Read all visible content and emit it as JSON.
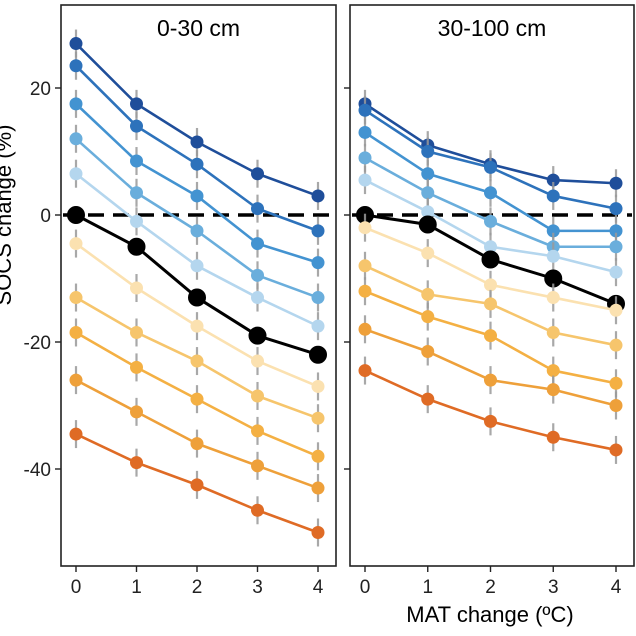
{
  "figure": {
    "ylabel": "SOCS change (%)",
    "xlabel": "MAT change (ºC)"
  },
  "chart_data": [
    {
      "type": "line",
      "title": "0-30 cm",
      "xlabel": "MAT change (ºC)",
      "ylabel": "SOCS change (%)",
      "x": [
        0,
        1,
        2,
        3,
        4
      ],
      "xticks": [
        "0",
        "1",
        "2",
        "3",
        "4"
      ],
      "yticks": [
        20,
        0,
        -20,
        -40
      ],
      "xlim": [
        -0.25,
        4.25
      ],
      "ylim": [
        -53,
        30
      ],
      "reference_line": 0,
      "series": [
        {
          "name": "s1",
          "color": "#1f4e9a",
          "values": [
            27,
            17.5,
            11.5,
            6.5,
            3
          ]
        },
        {
          "name": "s2",
          "color": "#2d72bb",
          "values": [
            23.5,
            14,
            8,
            1,
            -2.5
          ]
        },
        {
          "name": "s3",
          "color": "#4393d1",
          "values": [
            17.5,
            8.5,
            3,
            -4.5,
            -7.5
          ]
        },
        {
          "name": "s4",
          "color": "#6aaedc",
          "values": [
            12,
            3.5,
            -2.5,
            -9.5,
            -13
          ]
        },
        {
          "name": "s5",
          "color": "#b4d6ee",
          "values": [
            6.5,
            -1,
            -8,
            -13,
            -17.5
          ]
        },
        {
          "name": "mean",
          "color": "#000000",
          "values": [
            0,
            -5,
            -13,
            -19,
            -22
          ]
        },
        {
          "name": "s6",
          "color": "#fbe1b0",
          "values": [
            -4.5,
            -11.5,
            -17.5,
            -23,
            -27
          ]
        },
        {
          "name": "s7",
          "color": "#f6c56c",
          "values": [
            -13,
            -18.5,
            -23,
            -28.5,
            -32
          ]
        },
        {
          "name": "s8",
          "color": "#f4b043",
          "values": [
            -18.5,
            -24,
            -29,
            -34,
            -38
          ]
        },
        {
          "name": "s9",
          "color": "#eea03a",
          "values": [
            -26,
            -31,
            -36,
            -39.5,
            -43
          ]
        },
        {
          "name": "s10",
          "color": "#df6b25",
          "values": [
            -34.5,
            -39,
            -42.5,
            -46.5,
            -50
          ]
        }
      ]
    },
    {
      "type": "line",
      "title": "30-100 cm",
      "xlabel": "MAT change (ºC)",
      "ylabel": "SOCS change (%)",
      "x": [
        0,
        1,
        2,
        3,
        4
      ],
      "xticks": [
        "0",
        "1",
        "2",
        "3",
        "4"
      ],
      "yticks": [
        20,
        0,
        -20,
        -40
      ],
      "xlim": [
        -0.25,
        4.25
      ],
      "ylim": [
        -53,
        30
      ],
      "reference_line": 0,
      "series": [
        {
          "name": "s1",
          "color": "#1f4e9a",
          "values": [
            17.5,
            11,
            8,
            5.5,
            5
          ]
        },
        {
          "name": "s2",
          "color": "#2d72bb",
          "values": [
            16.5,
            10,
            7.5,
            3,
            1
          ]
        },
        {
          "name": "s3",
          "color": "#4393d1",
          "values": [
            13,
            6.5,
            3.5,
            -2.5,
            -2.5
          ]
        },
        {
          "name": "s4",
          "color": "#6aaedc",
          "values": [
            9,
            3.5,
            -1,
            -5,
            -5
          ]
        },
        {
          "name": "s5",
          "color": "#b4d6ee",
          "values": [
            5.5,
            0.5,
            -5,
            -6.5,
            -9
          ]
        },
        {
          "name": "mean",
          "color": "#000000",
          "values": [
            0,
            -1.5,
            -7,
            -10,
            -14
          ]
        },
        {
          "name": "s6",
          "color": "#fbe1b0",
          "values": [
            -2,
            -6,
            -11,
            -13,
            -15
          ]
        },
        {
          "name": "s7",
          "color": "#f6c56c",
          "values": [
            -8,
            -12.5,
            -14,
            -18.5,
            -20.5
          ]
        },
        {
          "name": "s8",
          "color": "#f4b043",
          "values": [
            -12,
            -16,
            -19,
            -24.5,
            -26.5
          ]
        },
        {
          "name": "s9",
          "color": "#eea03a",
          "values": [
            -18,
            -21.5,
            -26,
            -27.5,
            -30
          ]
        },
        {
          "name": "s10",
          "color": "#df6b25",
          "values": [
            -24.5,
            -29,
            -32.5,
            -35,
            -37
          ]
        }
      ]
    }
  ]
}
